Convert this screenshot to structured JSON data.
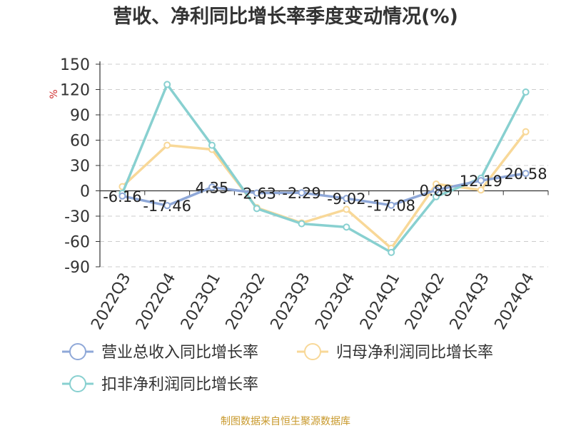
{
  "chart_data": {
    "type": "line",
    "title": "营收、净利同比增长率季度变动情况(%)",
    "y_unit": "%",
    "categories": [
      "2022Q3",
      "2022Q4",
      "2023Q1",
      "2023Q2",
      "2023Q3",
      "2023Q4",
      "2024Q1",
      "2024Q2",
      "2024Q3",
      "2024Q4"
    ],
    "ylim": [
      -90,
      150
    ],
    "yticks": [
      150,
      120,
      90,
      60,
      30,
      0,
      -30,
      -60,
      -90
    ],
    "grid": true,
    "legend_position": "bottom",
    "series": [
      {
        "name": "营业总收入同比增长率",
        "color": "#8fa8d8",
        "values": [
          -6.16,
          -17.46,
          4.35,
          -2.63,
          -2.29,
          -9.02,
          -17.08,
          0.89,
          12.19,
          20.58
        ],
        "labels": [
          "-6.16",
          "-17.46",
          "4.35",
          "-2.63",
          "-2.29",
          "-9.02",
          "-17.08",
          "0.89",
          "12.19",
          "20.58"
        ]
      },
      {
        "name": "归母净利润同比增长率",
        "color": "#f8d898",
        "values": [
          5,
          54,
          49,
          -20,
          -38,
          -22,
          -68,
          8,
          1,
          70
        ]
      },
      {
        "name": "扣非净利润同比增长率",
        "color": "#88d0d0",
        "values": [
          -3,
          126,
          54,
          -21,
          -39,
          -43,
          -73,
          -7,
          15,
          117
        ]
      }
    ]
  },
  "footer": {
    "source": "制图数据来自恒生聚源数据库"
  }
}
